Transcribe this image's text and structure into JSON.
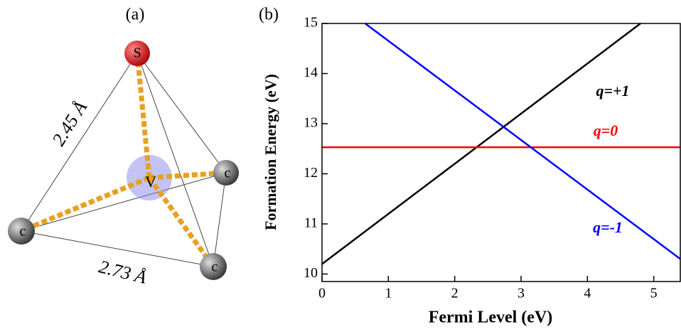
{
  "diagram": {
    "panel_label": "(a)",
    "atoms": [
      "S",
      "V",
      "c",
      "c",
      "c"
    ],
    "distances": [
      "2.45 Å",
      "2.73 Å"
    ]
  },
  "chart_data": {
    "type": "line",
    "panel_label": "(b)",
    "x_label": "Fermi  Level (eV)",
    "y_label": "Formation Energy (eV)",
    "xlim": [
      0,
      5.4
    ],
    "xticks": [
      0,
      1,
      2,
      3,
      4,
      5
    ],
    "ylim": [
      9.85,
      15
    ],
    "yticks": [
      10,
      11,
      12,
      13,
      14,
      15
    ],
    "series": [
      {
        "name": "q=+1",
        "color": "#000000",
        "x": [
          0,
          4.8
        ],
        "values": [
          10.2,
          15
        ]
      },
      {
        "name": "q=0",
        "color": "#ff0000",
        "x": [
          0,
          5.4
        ],
        "values": [
          12.53,
          12.53
        ]
      },
      {
        "name": "q=-1",
        "color": "#0000ff",
        "x": [
          0.65,
          5.4
        ],
        "values": [
          15,
          10.3
        ]
      }
    ]
  }
}
